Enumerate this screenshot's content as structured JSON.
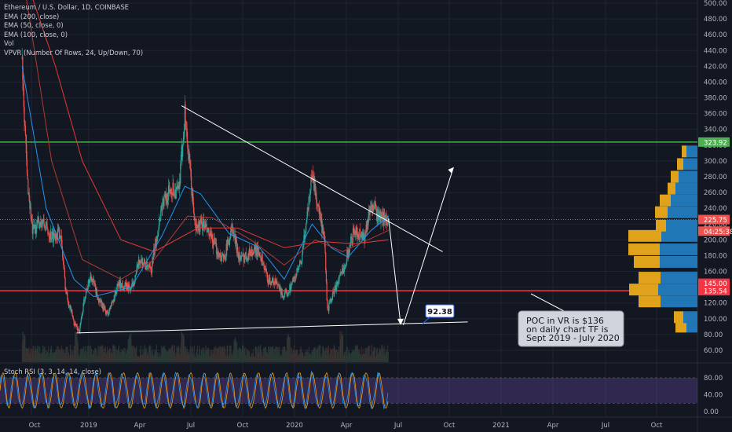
{
  "legend": {
    "title": "Ethereum / U.S. Dollar, 1D, COINBASE",
    "ema200": "EMA (200, close)",
    "ema50": "EMA (50, close, 0)",
    "ema100": "EMA (100, close, 0)",
    "vol": "Vol",
    "vpvr": "VPVR (Number Of Rows, 24, Up/Down, 70)",
    "stoch": "Stoch RSI (3, 3, 14, 14, close)"
  },
  "colors": {
    "background": "#131722",
    "candle_up": "#26a69a",
    "candle_down": "#ef5350",
    "ema200": "#e53935",
    "ema100": "#b23b2f",
    "ema50": "#2196f3",
    "green_line": "#4caf50",
    "red_line": "#f23645",
    "vpvr_up": "#2177b5",
    "vpvr_down": "#e0a11b",
    "stoch_band": "#7e57c2",
    "stoch_k": "#2196f3",
    "stoch_d": "#ff9800",
    "trendline": "#ffffff"
  },
  "chart_data": [
    {
      "type": "candlestick",
      "title": "Ethereum / U.S. Dollar, 1D, COINBASE",
      "y_ticks": [
        500,
        480,
        460,
        440,
        420,
        400,
        380,
        360,
        340,
        320,
        300,
        280,
        260,
        240,
        220,
        200,
        180,
        160,
        140,
        120,
        100,
        80,
        60
      ],
      "y_tick_labels": [
        "500.00",
        "480.00",
        "460.00",
        "440.00",
        "420.00",
        "400.00",
        "380.00",
        "360.00",
        "340.00",
        "320.00",
        "300.00",
        "280.00",
        "260.00",
        "240.00",
        "220.00",
        "200.00",
        "180.00",
        "160.00",
        "140.00",
        "120.00",
        "100.00",
        "80.00",
        "60.00"
      ],
      "x_tick_labels": [
        "Oct",
        "2019",
        "Apr",
        "Jul",
        "Oct",
        "2020",
        "Apr",
        "Jul",
        "Oct",
        "2021",
        "Apr",
        "Jul",
        "Oct"
      ],
      "price_path": [
        [
          "2018-09-01",
          430
        ],
        [
          "2018-09-10",
          280
        ],
        [
          "2018-09-20",
          210
        ],
        [
          "2018-10-05",
          225
        ],
        [
          "2018-10-25",
          205
        ],
        [
          "2018-11-10",
          210
        ],
        [
          "2018-11-20",
          135
        ],
        [
          "2018-12-05",
          95
        ],
        [
          "2018-12-15",
          84
        ],
        [
          "2018-12-25",
          130
        ],
        [
          "2019-01-05",
          155
        ],
        [
          "2019-01-20",
          122
        ],
        [
          "2019-02-05",
          105
        ],
        [
          "2019-02-25",
          145
        ],
        [
          "2019-03-20",
          138
        ],
        [
          "2019-04-05",
          175
        ],
        [
          "2019-04-25",
          160
        ],
        [
          "2019-05-15",
          245
        ],
        [
          "2019-06-01",
          265
        ],
        [
          "2019-06-15",
          260
        ],
        [
          "2019-06-26",
          362
        ],
        [
          "2019-07-05",
          290
        ],
        [
          "2019-07-15",
          215
        ],
        [
          "2019-07-30",
          220
        ],
        [
          "2019-08-10",
          205
        ],
        [
          "2019-08-25",
          185
        ],
        [
          "2019-09-05",
          175
        ],
        [
          "2019-09-20",
          215
        ],
        [
          "2019-10-05",
          175
        ],
        [
          "2019-10-25",
          185
        ],
        [
          "2019-11-10",
          185
        ],
        [
          "2019-11-25",
          150
        ],
        [
          "2019-12-10",
          145
        ],
        [
          "2019-12-25",
          127
        ],
        [
          "2020-01-05",
          140
        ],
        [
          "2020-01-25",
          170
        ],
        [
          "2020-02-14",
          285
        ],
        [
          "2020-02-28",
          230
        ],
        [
          "2020-03-08",
          195
        ],
        [
          "2020-03-13",
          110
        ],
        [
          "2020-03-25",
          135
        ],
        [
          "2020-04-10",
          160
        ],
        [
          "2020-04-30",
          210
        ],
        [
          "2020-05-20",
          205
        ],
        [
          "2020-06-01",
          245
        ],
        [
          "2020-06-15",
          230
        ],
        [
          "2020-06-27",
          225
        ],
        [
          "2020-07-03",
          228
        ]
      ],
      "ema_paths": {
        "ema50": [
          [
            "2018-09-01",
            420
          ],
          [
            "2018-10-15",
            240
          ],
          [
            "2018-12-05",
            150
          ],
          [
            "2019-01-10",
            128
          ],
          [
            "2019-03-20",
            140
          ],
          [
            "2019-05-15",
            205
          ],
          [
            "2019-06-26",
            268
          ],
          [
            "2019-07-25",
            258
          ],
          [
            "2019-09-15",
            208
          ],
          [
            "2019-11-10",
            190
          ],
          [
            "2019-12-25",
            150
          ],
          [
            "2020-02-14",
            220
          ],
          [
            "2020-03-20",
            190
          ],
          [
            "2020-04-20",
            178
          ],
          [
            "2020-06-01",
            212
          ],
          [
            "2020-07-03",
            230
          ]
        ],
        "ema100": [
          [
            "2018-09-01",
            540
          ],
          [
            "2018-10-25",
            300
          ],
          [
            "2018-12-20",
            175
          ],
          [
            "2019-03-01",
            150
          ],
          [
            "2019-05-01",
            175
          ],
          [
            "2019-07-01",
            230
          ],
          [
            "2019-08-15",
            228
          ],
          [
            "2019-10-25",
            200
          ],
          [
            "2019-12-25",
            168
          ],
          [
            "2020-02-20",
            200
          ],
          [
            "2020-04-10",
            185
          ],
          [
            "2020-05-20",
            198
          ],
          [
            "2020-07-03",
            212
          ]
        ],
        "ema200": [
          [
            "2018-09-01",
            545
          ],
          [
            "2018-11-01",
            420
          ],
          [
            "2018-12-20",
            300
          ],
          [
            "2019-03-01",
            200
          ],
          [
            "2019-05-01",
            185
          ],
          [
            "2019-07-20",
            215
          ],
          [
            "2019-10-01",
            215
          ],
          [
            "2019-12-25",
            190
          ],
          [
            "2020-03-01",
            198
          ],
          [
            "2020-05-01",
            195
          ],
          [
            "2020-07-03",
            200
          ]
        ]
      },
      "horizontal_levels": [
        {
          "price": 323.92,
          "color": "#4caf50"
        },
        {
          "price": 135.54,
          "color": "#f23645"
        },
        {
          "price": 225.75,
          "color": "#ef5350",
          "dotted": true
        }
      ],
      "price_labels": [
        {
          "text": "323.92",
          "price": 323.92,
          "bg": "#4caf50"
        },
        {
          "text": "225.75",
          "price": 225.75,
          "bg": "#ef5350"
        },
        {
          "text": "04:25:38",
          "price": 211,
          "bg": "#ef5350"
        },
        {
          "text": "135.54",
          "price": 135.54,
          "bg": "#f23645"
        },
        {
          "text": "145.00",
          "price": 145,
          "bg": "#f23645"
        }
      ],
      "drawings": {
        "descending_trendline": [
          [
            "2019-06-20",
            370
          ],
          [
            "2020-10-10",
            185
          ]
        ],
        "support_line": [
          [
            "2018-12-10",
            82
          ],
          [
            "2020-11-25",
            96
          ]
        ],
        "projection_down": [
          [
            "2020-07-03",
            227
          ],
          [
            "2020-07-25",
            94
          ]
        ],
        "projection_up": [
          [
            "2020-07-30",
            92
          ],
          [
            "2020-10-30",
            292
          ]
        ],
        "callout_target": "92.38",
        "note_lines": [
          "POC in VR is $136",
          "on daily chart TF is",
          "Sept 2019 - July 2020"
        ]
      },
      "vpvr_rows": [
        {
          "price": 90,
          "up": 14,
          "down": 14
        },
        {
          "price": 102,
          "up": 18,
          "down": 12
        },
        {
          "price": 122,
          "up": 47,
          "down": 28
        },
        {
          "price": 137,
          "up": 50,
          "down": 37
        },
        {
          "price": 152,
          "up": 47,
          "down": 28
        },
        {
          "price": 172,
          "up": 48,
          "down": 33
        },
        {
          "price": 188,
          "up": 48,
          "down": 40
        },
        {
          "price": 205,
          "up": 46,
          "down": 42
        },
        {
          "price": 218,
          "up": 40,
          "down": 13
        },
        {
          "price": 235,
          "up": 38,
          "down": 16
        },
        {
          "price": 250,
          "up": 34,
          "down": 14
        },
        {
          "price": 265,
          "up": 28,
          "down": 10
        },
        {
          "price": 280,
          "up": 24,
          "down": 10
        },
        {
          "price": 296,
          "up": 18,
          "down": 8
        },
        {
          "price": 312,
          "up": 14,
          "down": 6
        }
      ]
    },
    {
      "type": "line",
      "title": "Stoch RSI (3, 3, 14, 14, close)",
      "y_ticks": [
        80,
        40,
        0
      ],
      "y_tick_labels": [
        "80.00",
        "40.00",
        "0.00"
      ],
      "band": [
        20,
        80
      ],
      "range": [
        0,
        100
      ]
    }
  ]
}
